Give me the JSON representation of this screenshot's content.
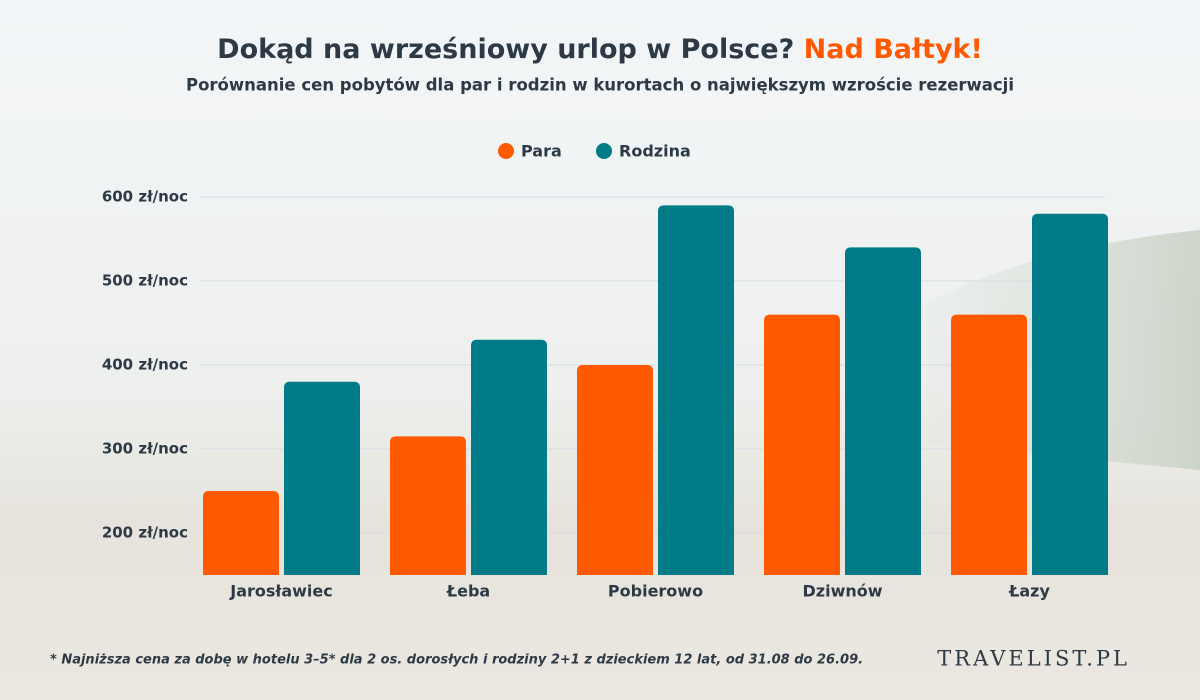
{
  "chart_data": {
    "type": "bar",
    "title": "Dokąd na wrześniowy urlop w Polsce?",
    "title_accent": "Nad Bałtyk!",
    "subtitle": "Porównanie cen pobytów dla par i rodzin w kurortach o największym wzroście rezerwacji",
    "categories": [
      "Jarosławiec",
      "Łeba",
      "Pobierowo",
      "Dziwnów",
      "Łazy"
    ],
    "series": [
      {
        "name": "Para",
        "color": "#ff5a00",
        "values": [
          250,
          315,
          400,
          460,
          460
        ]
      },
      {
        "name": "Rodzina",
        "color": "#007b87",
        "values": [
          380,
          430,
          590,
          540,
          580
        ]
      }
    ],
    "ylim": [
      150,
      600
    ],
    "yticks": [
      {
        "value": 200,
        "label": "200 zł/noc"
      },
      {
        "value": 300,
        "label": "300 zł/noc"
      },
      {
        "value": 400,
        "label": "400 zł/noc"
      },
      {
        "value": 500,
        "label": "500 zł/noc"
      },
      {
        "value": 600,
        "label": "600 zł/noc"
      }
    ],
    "grid": true,
    "legend": "top",
    "footnote": "* Najniższa cena za dobę w hotelu 3–5* dla 2 os. dorosłych i rodziny 2+1 z dzieckiem 12 lat, od 31.08 do 26.09.",
    "brand": "TRAVELIST.PL"
  }
}
